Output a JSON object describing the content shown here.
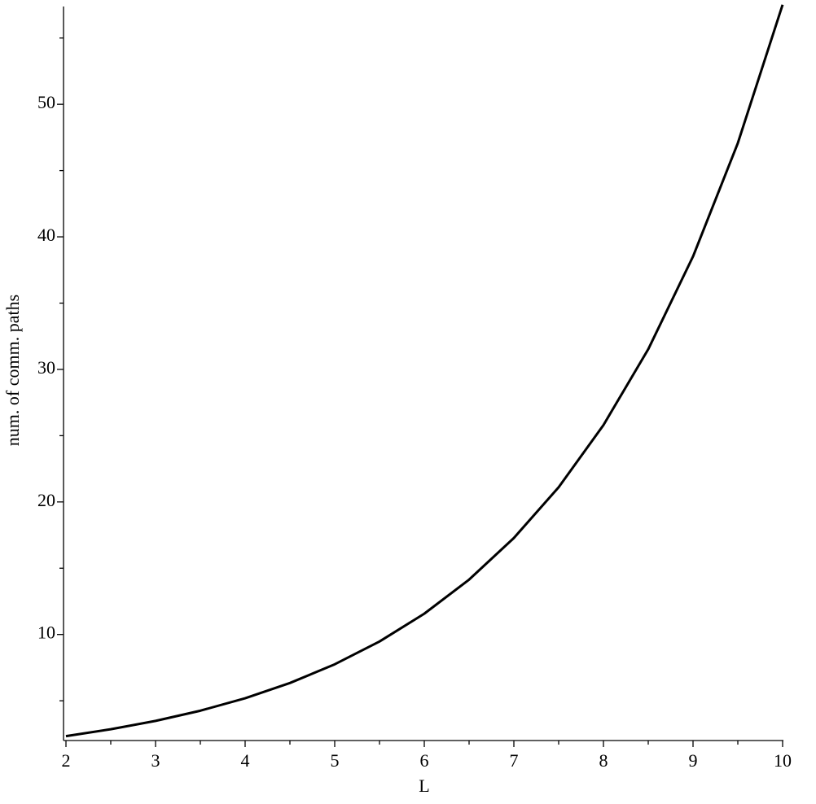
{
  "chart_data": {
    "type": "line",
    "xlabel": "L",
    "ylabel": "num. of comm. paths",
    "x": [
      2,
      2.5,
      3,
      3.5,
      4,
      4.5,
      5,
      5.5,
      6,
      6.5,
      7,
      7.5,
      8,
      8.5,
      9,
      9.5,
      10
    ],
    "series": [
      {
        "color": "#000000",
        "values": [
          2.33,
          2.85,
          3.48,
          4.25,
          5.19,
          6.34,
          7.75,
          9.47,
          11.57,
          14.14,
          17.28,
          21.11,
          25.8,
          31.52,
          38.52,
          47.07,
          57.51
        ]
      }
    ],
    "xlim": [
      2,
      10
    ],
    "ylim": [
      2,
      57.5
    ],
    "xticks": [
      2,
      3,
      4,
      5,
      6,
      7,
      8,
      9,
      10
    ],
    "yticks": [
      10,
      20,
      30,
      40,
      50
    ],
    "xminorticks": [
      2.5,
      3.5,
      4.5,
      5.5,
      6.5,
      7.5,
      8.5,
      9.5
    ],
    "yminorticks": [
      5,
      15,
      25,
      35,
      45,
      55
    ]
  }
}
